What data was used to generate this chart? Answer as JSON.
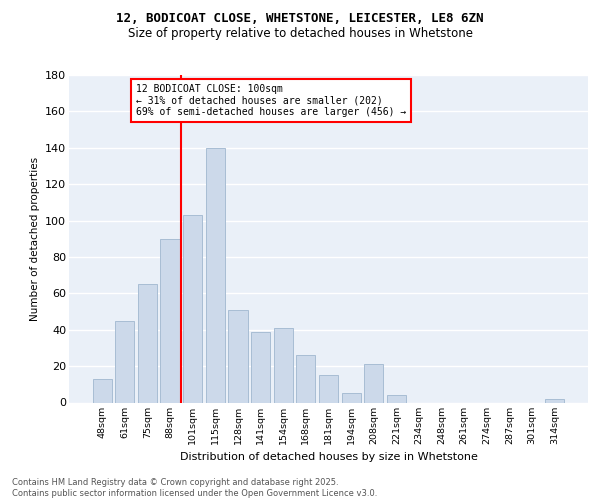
{
  "title_line1": "12, BODICOAT CLOSE, WHETSTONE, LEICESTER, LE8 6ZN",
  "title_line2": "Size of property relative to detached houses in Whetstone",
  "xlabel": "Distribution of detached houses by size in Whetstone",
  "ylabel": "Number of detached properties",
  "bar_labels": [
    "48sqm",
    "61sqm",
    "75sqm",
    "88sqm",
    "101sqm",
    "115sqm",
    "128sqm",
    "141sqm",
    "154sqm",
    "168sqm",
    "181sqm",
    "194sqm",
    "208sqm",
    "221sqm",
    "234sqm",
    "248sqm",
    "261sqm",
    "274sqm",
    "287sqm",
    "301sqm",
    "314sqm"
  ],
  "bar_values": [
    13,
    45,
    65,
    90,
    103,
    140,
    51,
    39,
    41,
    26,
    15,
    5,
    21,
    4,
    0,
    0,
    0,
    0,
    0,
    0,
    2
  ],
  "bar_color": "#ccd9ea",
  "bar_edge_color": "#a8bdd4",
  "vline_color": "red",
  "vline_index": 4,
  "annotation_text": "12 BODICOAT CLOSE: 100sqm\n← 31% of detached houses are smaller (202)\n69% of semi-detached houses are larger (456) →",
  "annotation_box_color": "white",
  "annotation_box_edge_color": "red",
  "ylim": [
    0,
    180
  ],
  "yticks": [
    0,
    20,
    40,
    60,
    80,
    100,
    120,
    140,
    160,
    180
  ],
  "background_color": "#eaf0f8",
  "footer_text": "Contains HM Land Registry data © Crown copyright and database right 2025.\nContains public sector information licensed under the Open Government Licence v3.0.",
  "grid_color": "white"
}
